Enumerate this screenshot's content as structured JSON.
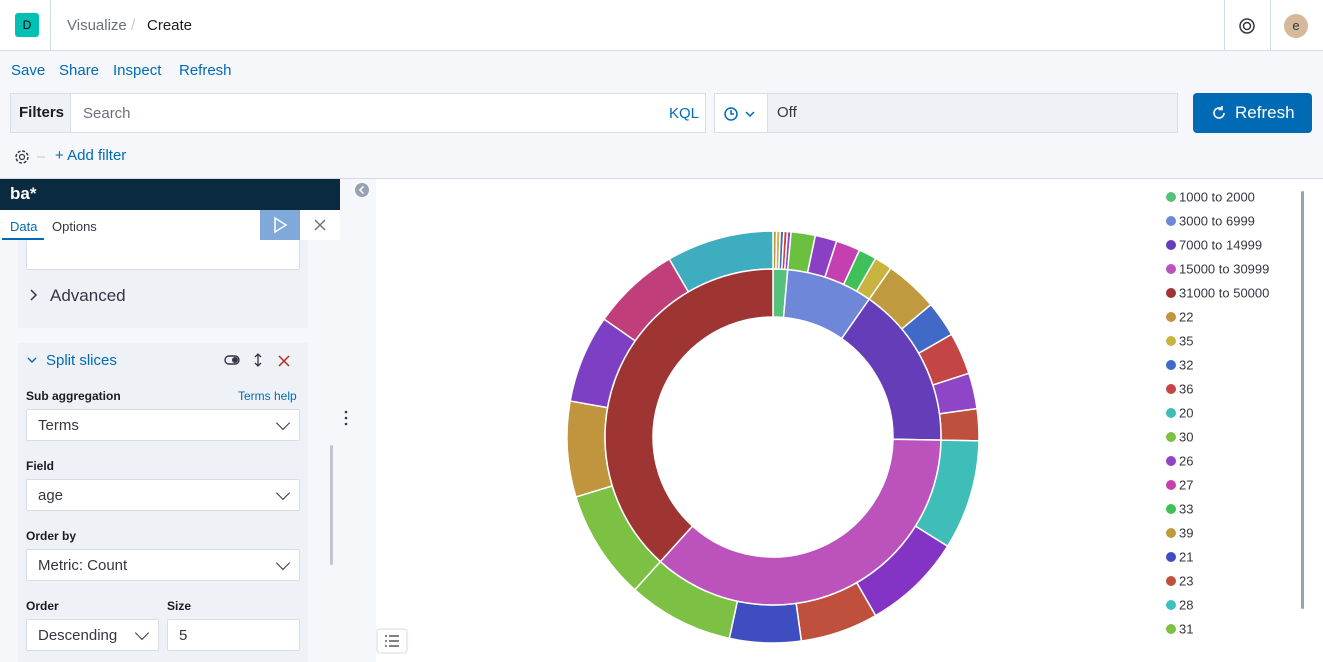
{
  "header": {
    "logo": "D",
    "breadcrumbs": [
      "Visualize",
      "Create"
    ],
    "avatar": "e"
  },
  "toolbar": [
    "Save",
    "Share",
    "Inspect",
    "Refresh"
  ],
  "query": {
    "filters_label": "Filters",
    "search_placeholder": "Search",
    "language": "KQL",
    "time": "Off",
    "refresh_button": "Refresh",
    "add_filter": "+ Add filter"
  },
  "sidebar": {
    "index": "ba*",
    "tabs": [
      "Data",
      "Options"
    ],
    "advanced": "Advanced",
    "split": "Split slices",
    "sub_aggregation_label": "Sub aggregation",
    "terms_help": "Terms help",
    "sub_aggregation_value": "Terms",
    "field_label": "Field",
    "field_value": "age",
    "order_by_label": "Order by",
    "order_by_value": "Metric: Count",
    "order_label": "Order",
    "order_value": "Descending",
    "size_label": "Size",
    "size_value": "5"
  },
  "chart_data": {
    "type": "donut",
    "inner": {
      "values": [
        1.4,
        8.3,
        15.6,
        36.4,
        38.3
      ],
      "colors": [
        "#57c17b",
        "#6f87d8",
        "#663db8",
        "#bc52bc",
        "#9e3533"
      ]
    },
    "outer": {
      "values": [
        0.28,
        0.28,
        0.28,
        0.28,
        0.28,
        1.9,
        1.7,
        1.9,
        1.4,
        1.4,
        4.2,
        2.8,
        3.3,
        2.8,
        2.5,
        8.6,
        7.8,
        6.1,
        5.6,
        8.3,
        8.6,
        7.5,
        6.9,
        6.9,
        8.4
      ],
      "colors": [
        "#c1953e",
        "#c8b43f",
        "#4169c7",
        "#c44545",
        "#8e45c6",
        "#6cc03f",
        "#8a3fc4",
        "#c43fb0",
        "#3fc05a",
        "#c8b43f",
        "#c09a3e",
        "#4169c7",
        "#c44545",
        "#8e45c6",
        "#c0503e",
        "#3fbdb8",
        "#8434c4",
        "#c0503e",
        "#3e4ec1",
        "#7cc044",
        "#7cc044",
        "#c1953e",
        "#7d3fc4",
        "#c03f7a",
        "#3fadc0"
      ]
    },
    "legend": [
      {
        "name": "1000 to 2000",
        "color": "#57c17b"
      },
      {
        "name": "3000 to 6999",
        "color": "#6f87d8"
      },
      {
        "name": "7000 to 14999",
        "color": "#663db8"
      },
      {
        "name": "15000 to 30999",
        "color": "#bc52bc"
      },
      {
        "name": "31000 to 50000",
        "color": "#9e3533"
      },
      {
        "name": "22",
        "color": "#c1953e"
      },
      {
        "name": "35",
        "color": "#c8b43f"
      },
      {
        "name": "32",
        "color": "#4169c7"
      },
      {
        "name": "36",
        "color": "#c44545"
      },
      {
        "name": "20",
        "color": "#3fbdb8"
      },
      {
        "name": "30",
        "color": "#7cc044"
      },
      {
        "name": "26",
        "color": "#8e45c6"
      },
      {
        "name": "27",
        "color": "#c43fb0"
      },
      {
        "name": "33",
        "color": "#3fc05a"
      },
      {
        "name": "39",
        "color": "#c09a3e"
      },
      {
        "name": "21",
        "color": "#3e4ec1"
      },
      {
        "name": "23",
        "color": "#c0503e"
      },
      {
        "name": "28",
        "color": "#3fc0c0"
      },
      {
        "name": "31",
        "color": "#7cc044"
      }
    ]
  }
}
